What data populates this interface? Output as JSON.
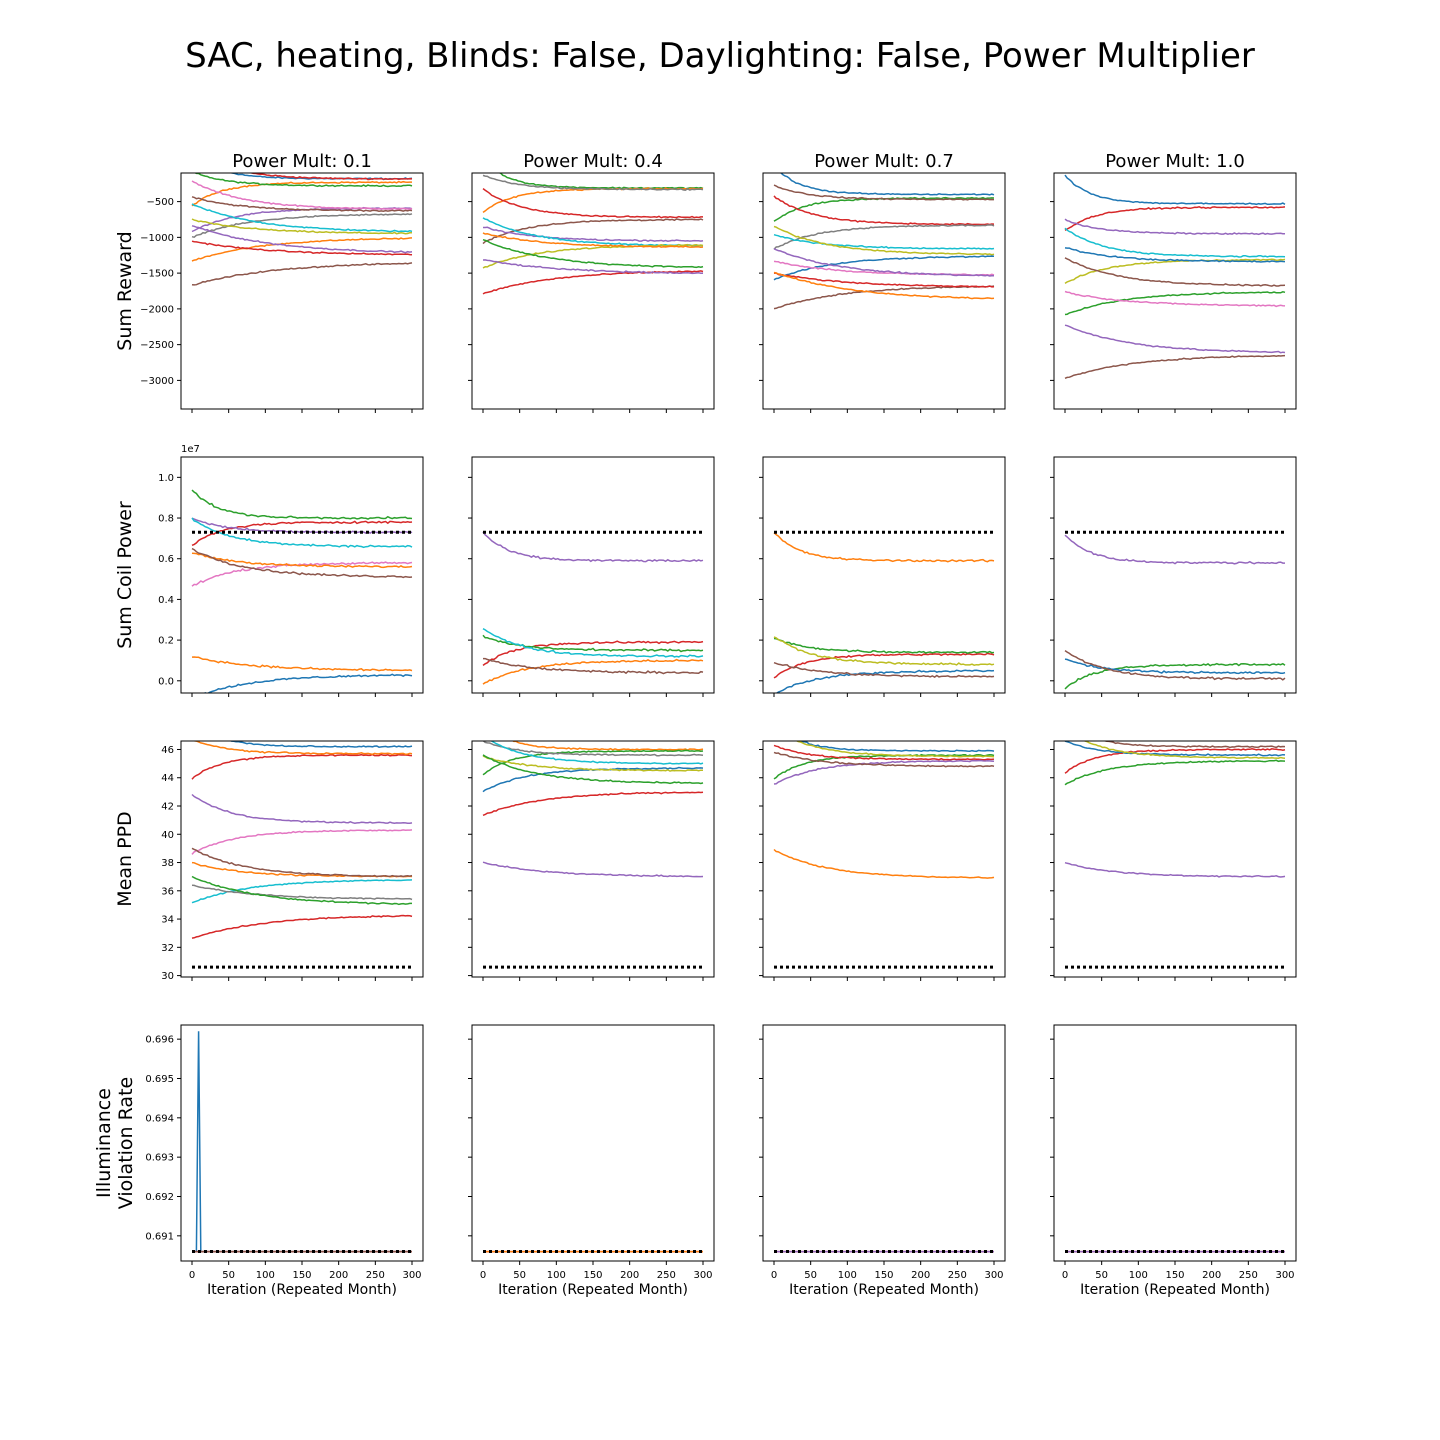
{
  "title": "SAC, heating, Blinds: False, Daylighting: False, Power Multiplier",
  "column_titles": [
    "Power Mult: 0.1",
    "Power Mult: 0.4",
    "Power Mult: 0.7",
    "Power Mult: 1.0"
  ],
  "row_labels": [
    "Sum Reward",
    "Sum Coil Power",
    "Mean PPD",
    "Illuminance\nViolation Rate"
  ],
  "xlabel": "Iteration (Repeated Month)",
  "colors": [
    "#1f77b4",
    "#ff7f0e",
    "#2ca02c",
    "#d62728",
    "#9467bd",
    "#8c564b",
    "#e377c2",
    "#7f7f7f",
    "#bcbd22",
    "#17becf"
  ],
  "chart_data": {
    "type": "line",
    "layout": "4 rows x 4 columns, shared x axis, shared y axis per row",
    "x_ticks": [
      0,
      50,
      100,
      150,
      200,
      250,
      300
    ],
    "xlim": [
      -15,
      315
    ],
    "rows": [
      {
        "ylabel": "Sum Reward",
        "ylim": [
          -3400,
          -100
        ],
        "y_ticks": [
          -3000,
          -2500,
          -2000,
          -1500,
          -1000,
          -500
        ],
        "y_tick_labels": [
          "−3000",
          "−2500",
          "−2000",
          "−1500",
          "−1000",
          "−500"
        ],
        "reference_line": null,
        "panels": [
          {
            "series": [
              {
                "color": 0,
                "final": -180
              },
              {
                "color": 1,
                "final": -230
              },
              {
                "color": 2,
                "final": -280
              },
              {
                "color": 3,
                "final": -185
              },
              {
                "color": 4,
                "final": -590
              },
              {
                "color": 5,
                "final": -630
              },
              {
                "color": 6,
                "final": -610
              },
              {
                "color": 7,
                "final": -670
              },
              {
                "color": 8,
                "final": -950
              },
              {
                "color": 9,
                "final": -930
              },
              {
                "color": 1,
                "final": -1000
              },
              {
                "color": 3,
                "final": -1250
              },
              {
                "color": 4,
                "final": -1230
              },
              {
                "color": 5,
                "final": -1340
              }
            ]
          },
          {
            "series": [
              {
                "color": 2,
                "final": -310
              },
              {
                "color": 1,
                "final": -320
              },
              {
                "color": 7,
                "final": -330
              },
              {
                "color": 3,
                "final": -720
              },
              {
                "color": 5,
                "final": -750
              },
              {
                "color": 4,
                "final": -1050
              },
              {
                "color": 9,
                "final": -1120
              },
              {
                "color": 8,
                "final": -1100
              },
              {
                "color": 1,
                "final": -1140
              },
              {
                "color": 2,
                "final": -1430
              },
              {
                "color": 3,
                "final": -1460
              },
              {
                "color": 4,
                "final": -1510
              }
            ]
          },
          {
            "series": [
              {
                "color": 0,
                "final": -400
              },
              {
                "color": 2,
                "final": -450
              },
              {
                "color": 5,
                "final": -470
              },
              {
                "color": 3,
                "final": -820
              },
              {
                "color": 7,
                "final": -830
              },
              {
                "color": 9,
                "final": -1160
              },
              {
                "color": 8,
                "final": -1240
              },
              {
                "color": 0,
                "final": -1260
              },
              {
                "color": 6,
                "final": -1530
              },
              {
                "color": 4,
                "final": -1550
              },
              {
                "color": 5,
                "final": -1670
              },
              {
                "color": 3,
                "final": -1700
              },
              {
                "color": 1,
                "final": -1880
              }
            ]
          },
          {
            "series": [
              {
                "color": 0,
                "final": -530
              },
              {
                "color": 3,
                "final": -580
              },
              {
                "color": 4,
                "final": -950
              },
              {
                "color": 9,
                "final": -1270
              },
              {
                "color": 8,
                "final": -1310
              },
              {
                "color": 0,
                "final": -1340
              },
              {
                "color": 5,
                "final": -1680
              },
              {
                "color": 2,
                "final": -1760
              },
              {
                "color": 6,
                "final": -1960
              },
              {
                "color": 4,
                "final": -2620
              },
              {
                "color": 5,
                "final": -2640
              }
            ]
          }
        ]
      },
      {
        "ylabel": "Sum Coil Power",
        "ylim": [
          -0.06,
          1.1
        ],
        "y_ticks": [
          0.0,
          0.2,
          0.4,
          0.6,
          0.8,
          1.0
        ],
        "y_tick_labels": [
          "0.0",
          "0.2",
          "0.4",
          "0.6",
          "0.8",
          "1.0"
        ],
        "y_offset_label": "1e7",
        "reference_line": 0.73,
        "panels": [
          {
            "series": [
              {
                "color": 2,
                "final": 0.8
              },
              {
                "color": 3,
                "final": 0.78
              },
              {
                "color": 4,
                "final": 0.73
              },
              {
                "color": 9,
                "final": 0.66
              },
              {
                "color": 6,
                "final": 0.58
              },
              {
                "color": 1,
                "final": 0.56
              },
              {
                "color": 5,
                "final": 0.51
              },
              {
                "color": 0,
                "final": 0.03
              },
              {
                "color": 1,
                "final": 0.05
              }
            ]
          },
          {
            "series": [
              {
                "color": 4,
                "final": 0.59
              },
              {
                "color": 3,
                "final": 0.19
              },
              {
                "color": 2,
                "final": 0.15
              },
              {
                "color": 9,
                "final": 0.12
              },
              {
                "color": 1,
                "final": 0.1
              },
              {
                "color": 5,
                "final": 0.04
              }
            ]
          },
          {
            "series": [
              {
                "color": 1,
                "final": 0.59
              },
              {
                "color": 3,
                "final": 0.13
              },
              {
                "color": 2,
                "final": 0.14
              },
              {
                "color": 8,
                "final": 0.08
              },
              {
                "color": 0,
                "final": 0.05
              },
              {
                "color": 5,
                "final": 0.02
              }
            ]
          },
          {
            "series": [
              {
                "color": 4,
                "final": 0.58
              },
              {
                "color": 2,
                "final": 0.08
              },
              {
                "color": 0,
                "final": 0.04
              },
              {
                "color": 5,
                "final": 0.01
              }
            ]
          }
        ]
      },
      {
        "ylabel": "Mean PPD",
        "ylim": [
          29.9,
          46.6
        ],
        "y_ticks": [
          30,
          32,
          34,
          36,
          38,
          40,
          42,
          44,
          46
        ],
        "y_tick_labels": [
          "30",
          "32",
          "34",
          "36",
          "38",
          "40",
          "42",
          "44",
          "46"
        ],
        "reference_line": 30.6,
        "panels": [
          {
            "series": [
              {
                "color": 0,
                "final": 46.2
              },
              {
                "color": 3,
                "final": 45.6
              },
              {
                "color": 1,
                "final": 45.7
              },
              {
                "color": 4,
                "final": 40.8
              },
              {
                "color": 6,
                "final": 40.3
              },
              {
                "color": 1,
                "final": 37.0
              },
              {
                "color": 5,
                "final": 37.0
              },
              {
                "color": 9,
                "final": 36.8
              },
              {
                "color": 7,
                "final": 35.4
              },
              {
                "color": 2,
                "final": 35.0
              },
              {
                "color": 3,
                "final": 34.3
              }
            ]
          },
          {
            "series": [
              {
                "color": 1,
                "final": 46.0
              },
              {
                "color": 2,
                "final": 45.9
              },
              {
                "color": 7,
                "final": 45.6
              },
              {
                "color": 9,
                "final": 45.0
              },
              {
                "color": 0,
                "final": 44.7
              },
              {
                "color": 8,
                "final": 44.5
              },
              {
                "color": 2,
                "final": 43.6
              },
              {
                "color": 3,
                "final": 43.0
              },
              {
                "color": 4,
                "final": 37.0
              }
            ]
          },
          {
            "series": [
              {
                "color": 0,
                "final": 45.9
              },
              {
                "color": 2,
                "final": 45.6
              },
              {
                "color": 3,
                "final": 45.3
              },
              {
                "color": 8,
                "final": 45.5
              },
              {
                "color": 4,
                "final": 45.2
              },
              {
                "color": 5,
                "final": 44.8
              },
              {
                "color": 1,
                "final": 36.9
              }
            ]
          },
          {
            "series": [
              {
                "color": 5,
                "final": 46.2
              },
              {
                "color": 3,
                "final": 46.0
              },
              {
                "color": 0,
                "final": 45.6
              },
              {
                "color": 8,
                "final": 45.4
              },
              {
                "color": 2,
                "final": 45.2
              },
              {
                "color": 4,
                "final": 37.0
              }
            ]
          }
        ]
      },
      {
        "ylabel": "Illuminance\nViolation Rate",
        "ylim": [
          0.69036,
          0.69636
        ],
        "y_ticks": [
          0.691,
          0.692,
          0.693,
          0.694,
          0.695,
          0.696
        ],
        "y_tick_labels": [
          "0.691",
          "0.692",
          "0.693",
          "0.694",
          "0.695",
          "0.696"
        ],
        "reference_line": 0.6906,
        "panels": [
          {
            "series": [
              {
                "color": 0,
                "final": 0.6906,
                "spike": {
                  "x": 8,
                  "y": 0.6962
                }
              },
              {
                "color": 3,
                "final": 0.6906
              },
              {
                "color": 5,
                "final": 0.6906
              }
            ]
          },
          {
            "series": [
              {
                "color": 3,
                "final": 0.6906
              },
              {
                "color": 1,
                "final": 0.6906
              }
            ]
          },
          {
            "series": [
              {
                "color": 3,
                "final": 0.6906
              },
              {
                "color": 4,
                "final": 0.6906
              }
            ]
          },
          {
            "series": [
              {
                "color": 3,
                "final": 0.6906
              },
              {
                "color": 4,
                "final": 0.6906
              }
            ]
          }
        ]
      }
    ]
  }
}
